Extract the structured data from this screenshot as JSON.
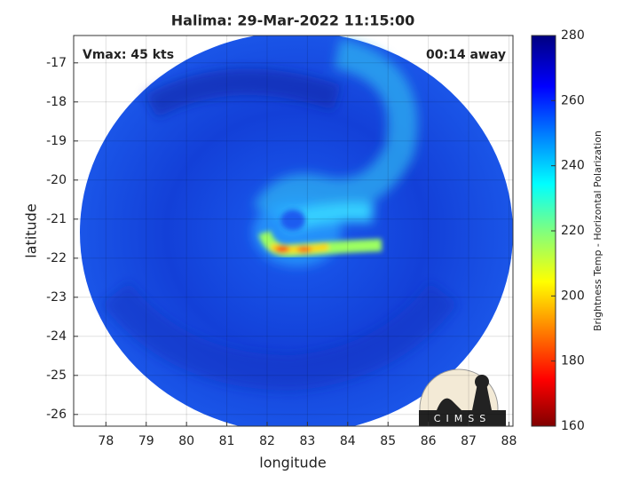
{
  "chart_data": {
    "type": "image",
    "title": "Halima: 29-Mar-2022 11:15:00",
    "xlabel": "longitude",
    "ylabel": "latitude",
    "xlim": [
      77.2,
      88.1
    ],
    "xticks": [
      78,
      79,
      80,
      81,
      82,
      83,
      84,
      85,
      86,
      87,
      88
    ],
    "ylim": [
      -26.3,
      -16.3
    ],
    "yticks": [
      -17,
      -18,
      -19,
      -20,
      -21,
      -22,
      -23,
      -24,
      -25,
      -26
    ],
    "grid": true,
    "annotations": {
      "left": "Vmax: 45 kts",
      "right": "00:14 away"
    },
    "colorbar": {
      "label": "Brightness Temp - Horizontal Polarization",
      "lim": [
        160,
        280
      ],
      "ticks": [
        160,
        180,
        200,
        220,
        240,
        260,
        280
      ]
    },
    "logo": "CIMSS"
  }
}
